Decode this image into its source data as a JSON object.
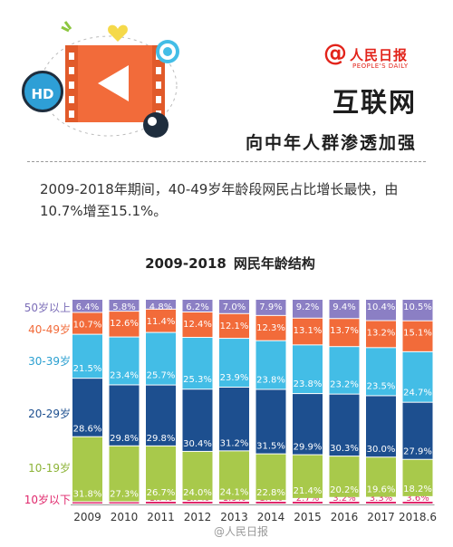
{
  "brand": {
    "name": "人民日报",
    "sub": "PEOPLE'S DAILY"
  },
  "header": {
    "title": "互联网",
    "subtitle": "向中年人群渗透加强"
  },
  "summary": "2009-2018年期间，40-49岁年龄段网民占比增长最快，由10.7%增至15.1%。",
  "icons": {
    "hd": "HD",
    "video": "video-play-icon",
    "target": "target-icon",
    "heart": "heart-icon"
  },
  "watermark": "@人民日报",
  "colors": {
    "50岁以上": "#8b7fc4",
    "40-49岁": "#f26b3a",
    "30-39岁": "#43bde6",
    "20-29岁": "#1d4f8f",
    "10-19岁": "#a8c94b",
    "10岁以下": "#e0286c"
  },
  "chart_data": {
    "type": "bar",
    "stacked": true,
    "title": "2009-2018",
    "subtitle": "网民年龄结构",
    "categories": [
      "2009",
      "2010",
      "2011",
      "2012",
      "2013",
      "2014",
      "2015",
      "2016",
      "2017",
      "2018.6"
    ],
    "series": [
      {
        "name": "10岁以下",
        "values": [
          1.1,
          1.1,
          1.7,
          1.7,
          1.9,
          1.7,
          2.7,
          3.2,
          3.3,
          3.6
        ]
      },
      {
        "name": "10-19岁",
        "values": [
          31.8,
          27.3,
          26.7,
          24.0,
          24.1,
          22.8,
          21.4,
          20.2,
          19.6,
          18.2
        ]
      },
      {
        "name": "20-29岁",
        "values": [
          28.6,
          29.8,
          29.8,
          30.4,
          31.2,
          31.5,
          29.9,
          30.3,
          30.0,
          27.9
        ]
      },
      {
        "name": "30-39岁",
        "values": [
          21.5,
          23.4,
          25.7,
          25.3,
          23.9,
          23.8,
          23.8,
          23.2,
          23.5,
          24.7
        ]
      },
      {
        "name": "40-49岁",
        "values": [
          10.7,
          12.6,
          11.4,
          12.4,
          12.1,
          12.3,
          13.1,
          13.7,
          13.2,
          15.1
        ]
      },
      {
        "name": "50岁以上",
        "values": [
          6.4,
          5.8,
          4.8,
          6.2,
          7.0,
          7.9,
          9.2,
          9.4,
          10.4,
          10.5
        ]
      }
    ]
  }
}
